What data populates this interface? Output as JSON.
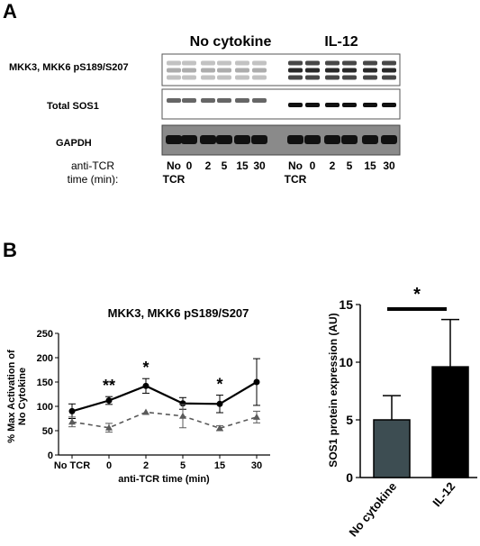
{
  "panel_a": {
    "label": "A",
    "groups": [
      "No cytokine",
      "IL-12"
    ],
    "rows": [
      "MKK3, MKK6 pS189/S207",
      "Total SOS1",
      "GAPDH"
    ],
    "axis_label_line1": "anti-TCR",
    "axis_label_line2": "time (min):",
    "lanes": [
      "No",
      "0",
      "2",
      "5",
      "15",
      "30"
    ],
    "lane_sub": "TCR"
  },
  "panel_b": {
    "label": "B"
  },
  "chart_data": [
    {
      "type": "line",
      "title": "MKK3, MKK6 pS189/S207",
      "xlabel": "anti-TCR time (min)",
      "ylabel": "% Max Activation of No Cytokine",
      "categories": [
        "No TCR",
        "0",
        "2",
        "5",
        "15",
        "30"
      ],
      "ylim": [
        0,
        250
      ],
      "yticks": [
        0,
        50,
        100,
        150,
        200,
        250
      ],
      "series": [
        {
          "values": [
            90,
            112,
            142,
            106,
            105,
            150
          ],
          "errors": [
            15,
            8,
            15,
            12,
            18,
            48
          ],
          "color": "#000000",
          "marker": "circle",
          "line": "solid"
        },
        {
          "values": [
            68,
            56,
            88,
            80,
            55,
            78
          ],
          "errors": [
            10,
            9,
            0,
            24,
            5,
            12
          ],
          "color": "#5a5a5a",
          "marker": "triangle",
          "line": "dashed"
        }
      ],
      "annotations": [
        {
          "category": "0",
          "text": "**"
        },
        {
          "category": "2",
          "text": "*"
        },
        {
          "category": "15",
          "text": "*"
        }
      ]
    },
    {
      "type": "bar",
      "categories": [
        "No cytokine",
        "IL-12"
      ],
      "values": [
        5.0,
        9.6
      ],
      "errors": [
        2.1,
        4.1
      ],
      "colors": [
        "#3d4d52",
        "#000000"
      ],
      "ylabel": "SOS1 protein expression (AU)",
      "ylim": [
        0,
        15
      ],
      "yticks": [
        0,
        5,
        10,
        15
      ],
      "significance": "*"
    }
  ]
}
